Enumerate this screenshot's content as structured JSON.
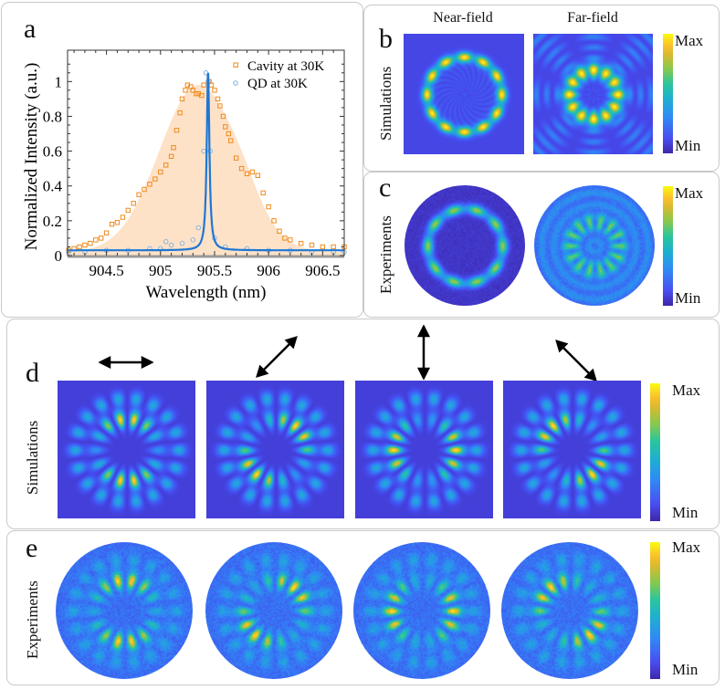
{
  "panels": {
    "a": {
      "label": "a"
    },
    "b": {
      "label": "b",
      "row_label": "Simulations",
      "col_titles": [
        "Near-field",
        "Far-field"
      ],
      "colorbar": {
        "max": "Max",
        "min": "Min"
      }
    },
    "c": {
      "label": "c",
      "row_label": "Experiments",
      "colorbar": {
        "max": "Max",
        "min": "Min"
      }
    },
    "d": {
      "label": "d",
      "row_label": "Simulations",
      "polarizations": [
        "horizontal",
        "diagonal-45",
        "vertical",
        "diagonal-135"
      ],
      "colorbar": {
        "max": "Max",
        "min": "Min"
      }
    },
    "e": {
      "label": "e",
      "row_label": "Experiments",
      "colorbar": {
        "max": "Max",
        "min": "Min"
      }
    }
  },
  "colors": {
    "cavity": "#f08a1c",
    "qd": "#1f77d4",
    "fill": "#fde2c8",
    "field_low": "#3e26a8",
    "field_high": "#f9fb0e"
  },
  "chart_data": {
    "type": "scatter",
    "title": "",
    "xlabel": "Wavelength (nm)",
    "ylabel": "Normalized Intensity (a.u.)",
    "xlim": [
      904.14,
      906.7
    ],
    "ylim": [
      0,
      1.18
    ],
    "xticks": [
      904.5,
      905,
      905.5,
      906,
      906.5
    ],
    "xtick_labels": [
      "904.5",
      "905",
      "905.5",
      "906",
      "906.5"
    ],
    "yticks": [
      0,
      0.2,
      0.4,
      0.6,
      0.8,
      1
    ],
    "ytick_labels": [
      "0",
      "0.2",
      "0.4",
      "0.6",
      "0.8",
      "1"
    ],
    "grid": false,
    "legend": {
      "position": "top-right",
      "entries": [
        "Cavity at 30K",
        "QD at 30K"
      ]
    },
    "series": [
      {
        "name": "Cavity at 30K",
        "marker": "square",
        "x": [
          904.15,
          904.2,
          904.25,
          904.3,
          904.35,
          904.4,
          904.45,
          904.5,
          904.55,
          904.6,
          904.65,
          904.7,
          904.75,
          904.8,
          904.85,
          904.9,
          904.95,
          905.0,
          905.05,
          905.1,
          905.12,
          905.15,
          905.18,
          905.2,
          905.23,
          905.25,
          905.28,
          905.3,
          905.33,
          905.35,
          905.38,
          905.4,
          905.45,
          905.47,
          905.5,
          905.53,
          905.55,
          905.58,
          905.6,
          905.63,
          905.65,
          905.7,
          905.75,
          905.8,
          905.85,
          905.9,
          905.95,
          906.0,
          906.05,
          906.1,
          906.15,
          906.2,
          906.3,
          906.4,
          906.5,
          906.6,
          906.7
        ],
        "y": [
          0.03,
          0.04,
          0.05,
          0.06,
          0.07,
          0.09,
          0.1,
          0.13,
          0.18,
          0.19,
          0.22,
          0.26,
          0.3,
          0.35,
          0.38,
          0.41,
          0.44,
          0.48,
          0.52,
          0.57,
          0.62,
          0.72,
          0.82,
          0.9,
          0.95,
          0.98,
          0.97,
          0.95,
          0.93,
          0.93,
          0.92,
          0.98,
          1.0,
          0.98,
          0.95,
          0.9,
          0.86,
          0.8,
          0.74,
          0.7,
          0.66,
          0.56,
          0.5,
          0.47,
          0.48,
          0.46,
          0.36,
          0.28,
          0.2,
          0.14,
          0.1,
          0.09,
          0.07,
          0.06,
          0.05,
          0.05,
          0.05
        ]
      },
      {
        "name": "QD at 30K",
        "marker": "circle",
        "x": [
          904.15,
          904.3,
          904.5,
          904.7,
          904.9,
          905.0,
          905.05,
          905.1,
          905.2,
          905.3,
          905.35,
          905.4,
          905.42,
          905.44,
          905.46,
          905.5,
          905.6,
          905.8,
          906.0,
          906.2,
          906.4,
          906.6,
          906.7
        ],
        "y": [
          0.02,
          0.02,
          0.03,
          0.03,
          0.04,
          0.04,
          0.08,
          0.06,
          0.07,
          0.09,
          0.16,
          0.6,
          1.05,
          1.0,
          0.6,
          0.1,
          0.05,
          0.04,
          0.03,
          0.03,
          0.02,
          0.02,
          0.02
        ]
      },
      {
        "name": "QD fit (Lorentzian)",
        "type": "line",
        "center": 905.44,
        "peak": 1.05,
        "baseline": 0.03,
        "fwhm": 0.03
      },
      {
        "name": "Cavity fit (shaded)",
        "type": "area",
        "center": 905.35,
        "peak": 0.98,
        "baseline": 0.02,
        "fwhm": 0.85
      }
    ]
  }
}
